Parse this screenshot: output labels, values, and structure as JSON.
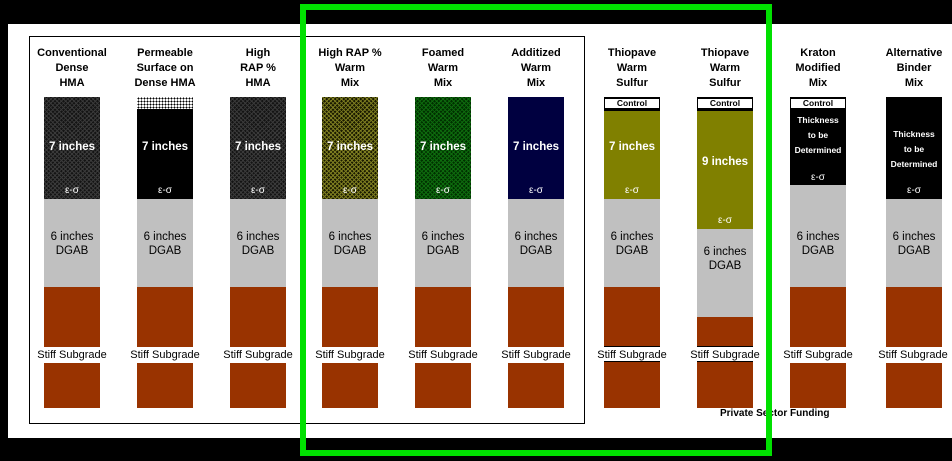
{
  "colors": {
    "dgab": "#c0c0c0",
    "subgrade": "#993300",
    "navy": "#000040",
    "olive": "#808000",
    "black": "#000000",
    "highlight": "#00e000"
  },
  "columns": [
    {
      "id": "conventional",
      "title_lines": [
        "Conventional",
        "Dense",
        "HMA"
      ],
      "hma": "7 inches",
      "eps": "ε-σ",
      "dgab": [
        "6 inches",
        "DGAB"
      ],
      "subgrade": "Stiff Subgrade"
    },
    {
      "id": "permeable",
      "title_lines": [
        "Permeable",
        "Surface on",
        "Dense HMA"
      ],
      "hma": "7 inches",
      "eps": "ε-σ",
      "dgab": [
        "6 inches",
        "DGAB"
      ],
      "subgrade": "Stiff Subgrade"
    },
    {
      "id": "high-rap",
      "title_lines": [
        "High",
        "RAP %",
        "HMA"
      ],
      "hma": "7 inches",
      "eps": "ε-σ",
      "dgab": [
        "6 inches",
        "DGAB"
      ],
      "subgrade": "Stiff Subgrade"
    },
    {
      "id": "high-rap-warm",
      "title_lines": [
        "High RAP %",
        "Warm",
        "Mix"
      ],
      "hma": "7 inches",
      "eps": "ε-σ",
      "dgab": [
        "6 inches",
        "DGAB"
      ],
      "subgrade": "Stiff Subgrade"
    },
    {
      "id": "foamed-warm",
      "title_lines": [
        "Foamed",
        "Warm",
        "Mix"
      ],
      "hma": "7 inches",
      "eps": "ε-σ",
      "dgab": [
        "6 inches",
        "DGAB"
      ],
      "subgrade": "Stiff Subgrade"
    },
    {
      "id": "additized-warm",
      "title_lines": [
        "Additized",
        "Warm",
        "Mix"
      ],
      "hma": "7 inches",
      "eps": "ε-σ",
      "dgab": [
        "6 inches",
        "DGAB"
      ],
      "subgrade": "Stiff Subgrade"
    },
    {
      "id": "thiopave-1",
      "title_lines": [
        "Thiopave",
        "Warm",
        "Sulfur"
      ],
      "control": "Control",
      "hma": "7 inches",
      "eps": "ε-σ",
      "dgab": [
        "6 inches",
        "DGAB"
      ],
      "subgrade": "Stiff Subgrade"
    },
    {
      "id": "thiopave-2",
      "title_lines": [
        "Thiopave",
        "Warm",
        "Sulfur"
      ],
      "control": "Control",
      "hma": "9 inches",
      "eps": "ε-σ",
      "dgab": [
        "6 inches",
        "DGAB"
      ],
      "subgrade": "Stiff Subgrade"
    },
    {
      "id": "kraton",
      "title_lines": [
        "Kraton",
        "Modified",
        "Mix"
      ],
      "control": "Control",
      "tbd_lines": [
        "Thickness",
        "to be",
        "Determined"
      ],
      "eps": "ε-σ",
      "dgab": [
        "6 inches",
        "DGAB"
      ],
      "subgrade": "Stiff Subgrade"
    },
    {
      "id": "alt-binder",
      "title_lines": [
        "Alternative",
        "Binder",
        "Mix"
      ],
      "tbd_lines": [
        "Thickness",
        "to be",
        "Determined"
      ],
      "eps": "ε-σ",
      "dgab": [
        "6 inches",
        "DGAB"
      ],
      "subgrade": "Stiff Subgrade"
    }
  ],
  "funding_note": "Private Sector Funding"
}
